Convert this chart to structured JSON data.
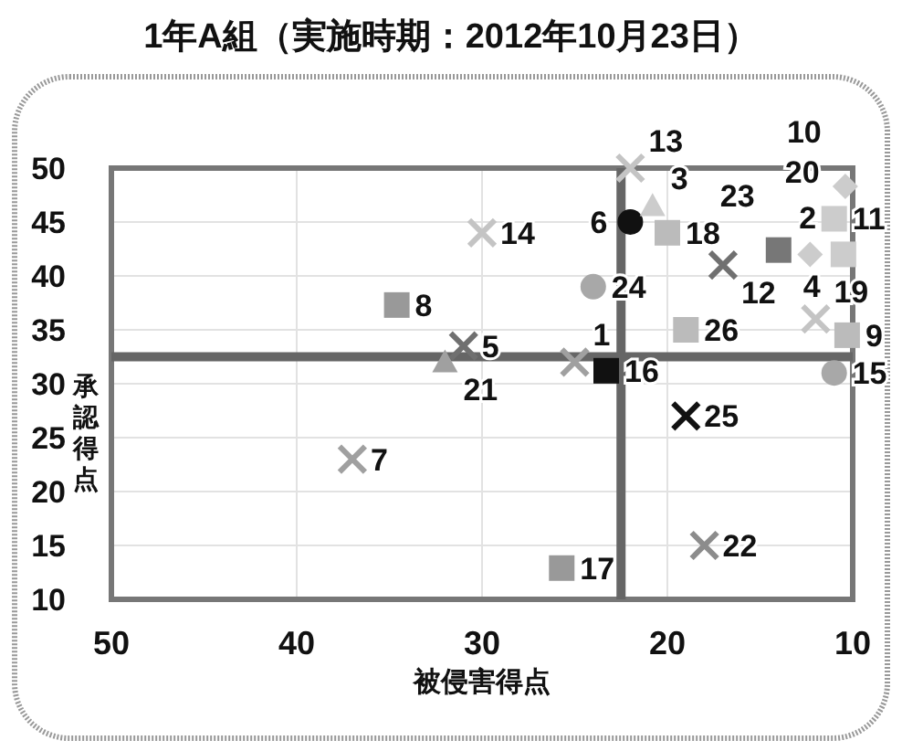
{
  "chart_data": {
    "type": "scatter",
    "title": "1年A組（実施時期：2012年10月23日）",
    "xlabel": "被侵害得点",
    "ylabel": "承認得点",
    "xlim": [
      50,
      10
    ],
    "xticks": [
      50,
      40,
      30,
      20,
      10
    ],
    "ylim": [
      10,
      50
    ],
    "yticks": [
      10,
      15,
      20,
      25,
      30,
      35,
      40,
      45,
      50
    ],
    "grid": true,
    "ref_lines": [
      {
        "axis": "x",
        "value": 22.5,
        "color": "#666666"
      },
      {
        "axis": "y",
        "value": 32.5,
        "color": "#666666"
      }
    ],
    "series": [
      {
        "marker": "circle",
        "color": "#111111",
        "x": [
          22
        ],
        "values": [
          45
        ]
      },
      {
        "marker": "circle",
        "color": "#a8a8a8",
        "x": [
          24,
          11
        ],
        "values": [
          39,
          31
        ]
      },
      {
        "marker": "triangle",
        "color": "#cccccc",
        "x": [
          20.8
        ],
        "values": [
          46.5
        ]
      },
      {
        "marker": "triangle",
        "color": "#a0a0a0",
        "x": [
          32
        ],
        "values": [
          32
        ]
      },
      {
        "marker": "cross",
        "color": "#c4c4c4",
        "x": [
          30,
          22,
          12
        ],
        "values": [
          44,
          50,
          36
        ]
      },
      {
        "marker": "cross",
        "color": "#8c8c8c",
        "x": [
          18
        ],
        "values": [
          15
        ]
      },
      {
        "marker": "cross",
        "color": "#707070",
        "x": [
          31,
          17
        ],
        "values": [
          33.5,
          41
        ]
      },
      {
        "marker": "cross",
        "color": "#a0a0a0",
        "x": [
          37,
          25
        ],
        "values": [
          23,
          32
        ]
      },
      {
        "marker": "cross",
        "color": "#111111",
        "x": [
          19
        ],
        "values": [
          27
        ]
      },
      {
        "marker": "square",
        "color": "#bbbbbb",
        "x": [
          20,
          19,
          null,
          10.3
        ],
        "values": [
          44,
          35,
          null,
          34.5
        ]
      },
      {
        "marker": "square",
        "color": "#999999",
        "x": [
          34.6,
          25.7
        ],
        "values": [
          37.3,
          12.9
        ]
      },
      {
        "marker": "square",
        "color": "#111111",
        "x": [
          23.3
        ],
        "values": [
          31.2
        ]
      },
      {
        "marker": "square",
        "color": "#777777",
        "x": [
          14
        ],
        "values": [
          42.4
        ]
      },
      {
        "marker": "square",
        "color": "#cccccc",
        "x": [
          11,
          10.5
        ],
        "values": [
          45.3,
          42
        ]
      },
      {
        "marker": "diamond",
        "color": "#cccccc",
        "x": [
          10.4,
          12.3
        ],
        "values": [
          48.3,
          42
        ]
      }
    ],
    "annotations": [
      {
        "text": "6",
        "x": 22,
        "y": 45
      },
      {
        "text": "24",
        "x": 24,
        "y": 39
      },
      {
        "text": "15",
        "x": 11,
        "y": 31
      },
      {
        "text": "3",
        "x": 20.8,
        "y": 46.5
      },
      {
        "text": "21",
        "x": 32,
        "y": 32
      },
      {
        "text": "14",
        "x": 30,
        "y": 44
      },
      {
        "text": "13",
        "x": 22,
        "y": 50
      },
      {
        "text": "19",
        "x": 12,
        "y": 36
      },
      {
        "text": "22",
        "x": 18,
        "y": 15
      },
      {
        "text": "5",
        "x": 31,
        "y": 33.5
      },
      {
        "text": "12",
        "x": 17,
        "y": 41
      },
      {
        "text": "7",
        "x": 37,
        "y": 23
      },
      {
        "text": "1",
        "x": 25,
        "y": 32
      },
      {
        "text": "25",
        "x": 19,
        "y": 27
      },
      {
        "text": "18",
        "x": 20,
        "y": 44
      },
      {
        "text": "26",
        "x": 19,
        "y": 35
      },
      {
        "text": "4",
        "x": 10.5,
        "y": 34
      },
      {
        "text": "9",
        "x": 10.3,
        "y": 34.5
      },
      {
        "text": "8",
        "x": 34.6,
        "y": 37.3
      },
      {
        "text": "17",
        "x": 25.7,
        "y": 12.9
      },
      {
        "text": "16",
        "x": 23.3,
        "y": 31.2
      },
      {
        "text": "23",
        "x": 14,
        "y": 42.4
      },
      {
        "text": "11",
        "x": 11,
        "y": 45.3
      },
      {
        "text": "20",
        "x": 10.5,
        "y": 42
      },
      {
        "text": "10",
        "x": 10.4,
        "y": 48.3
      },
      {
        "text": "2",
        "x": 12.3,
        "y": 42
      }
    ]
  }
}
